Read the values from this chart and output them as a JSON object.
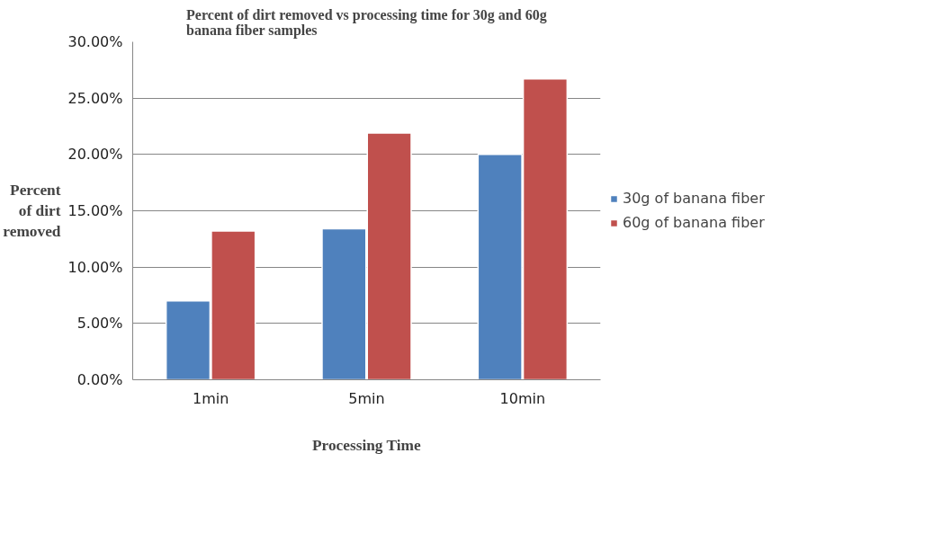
{
  "chart_data": {
    "type": "bar",
    "title": "Percent of dirt removed vs processing time for 30g and 60g\nbanana fiber samples",
    "xlabel": "Processing Time",
    "ylabel": "Percent\nof dirt\nremoved",
    "categories": [
      "1min",
      "5min",
      "10min"
    ],
    "series": [
      {
        "name": "30g of banana fiber",
        "color": "#4f81bd",
        "values": [
          7.0,
          13.4,
          20.0
        ]
      },
      {
        "name": "60g of banana fiber",
        "color": "#c0504d",
        "values": [
          13.2,
          21.9,
          26.7
        ]
      }
    ],
    "ylim": [
      0,
      30
    ],
    "yticks": [
      {
        "value": 0,
        "label": "0.00%"
      },
      {
        "value": 5,
        "label": "5.00%"
      },
      {
        "value": 10,
        "label": "10.00%"
      },
      {
        "value": 15,
        "label": "15.00%"
      },
      {
        "value": 20,
        "label": "20.00%"
      },
      {
        "value": 25,
        "label": "25.00%"
      },
      {
        "value": 30,
        "label": "30.00%"
      }
    ],
    "grid": "y",
    "legend": "right"
  }
}
